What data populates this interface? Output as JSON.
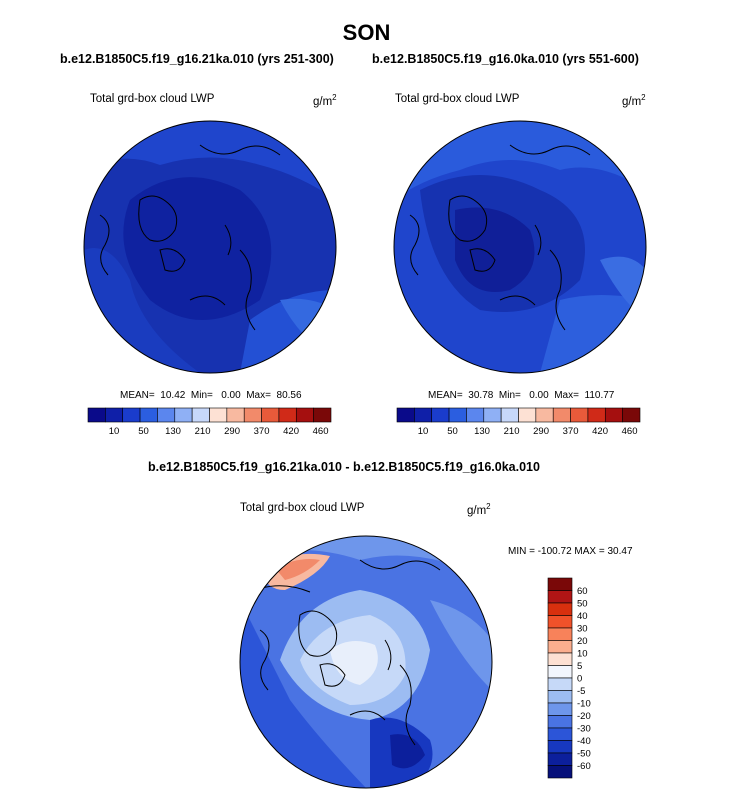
{
  "figure": {
    "season": "SON",
    "case_left": "b.e12.B1850C5.f19_g16.21ka.010 (yrs 251-300)",
    "case_right": "b.e12.B1850C5.f19_g16.0ka.010 (yrs 551-600)",
    "diff_title": "b.e12.B1850C5.f19_g16.21ka.010 - b.e12.B1850C5.f19_g16.0ka.010"
  },
  "panels": [
    {
      "id": "left",
      "variable": "Total grd-box cloud LWP",
      "units_base": "g/m",
      "units_exp": "2",
      "mean_label": "MEAN=",
      "mean_value": "10.42",
      "min_label": "Min=",
      "min_value": "0.00",
      "max_label": "Max=",
      "max_value": "80.56"
    },
    {
      "id": "right",
      "variable": "Total grd-box cloud LWP",
      "units_base": "g/m",
      "units_exp": "2",
      "mean_label": "MEAN=",
      "mean_value": "30.78",
      "min_label": "Min=",
      "min_value": "0.00",
      "max_label": "Max=",
      "max_value": "110.77"
    }
  ],
  "diff_panel": {
    "variable": "Total grd-box cloud LWP",
    "units_base": "g/m",
    "units_exp": "2",
    "minmax_text": "MIN = -100.72 MAX =  30.47"
  },
  "colorbar_top": {
    "colors": [
      "#0a0a8a",
      "#0f1fa8",
      "#1a3ccc",
      "#2b5ee0",
      "#5b86ee",
      "#8fb0f5",
      "#c7d8fa",
      "#fde1d4",
      "#f8b9a0",
      "#f28a6a",
      "#e85a3a",
      "#d02a18",
      "#a50f0f",
      "#7a0808"
    ],
    "labels": [
      "10",
      "50",
      "130",
      "210",
      "290",
      "370",
      "420",
      "460"
    ]
  },
  "colorbar_diff": {
    "colors_top_to_bottom": [
      "#7a0808",
      "#b01515",
      "#d8300e",
      "#f0522a",
      "#f8825a",
      "#fbae8e",
      "#fde0d2",
      "#f2f6fd",
      "#c6d9f8",
      "#9cbcf2",
      "#6e96eb",
      "#4a73e3",
      "#2c55d8",
      "#1738c0",
      "#0c1f9c",
      "#06107a"
    ],
    "labels": [
      "60",
      "50",
      "40",
      "30",
      "20",
      "10",
      "5",
      "0",
      "-5",
      "-10",
      "-20",
      "-30",
      "-40",
      "-50",
      "-60"
    ]
  }
}
